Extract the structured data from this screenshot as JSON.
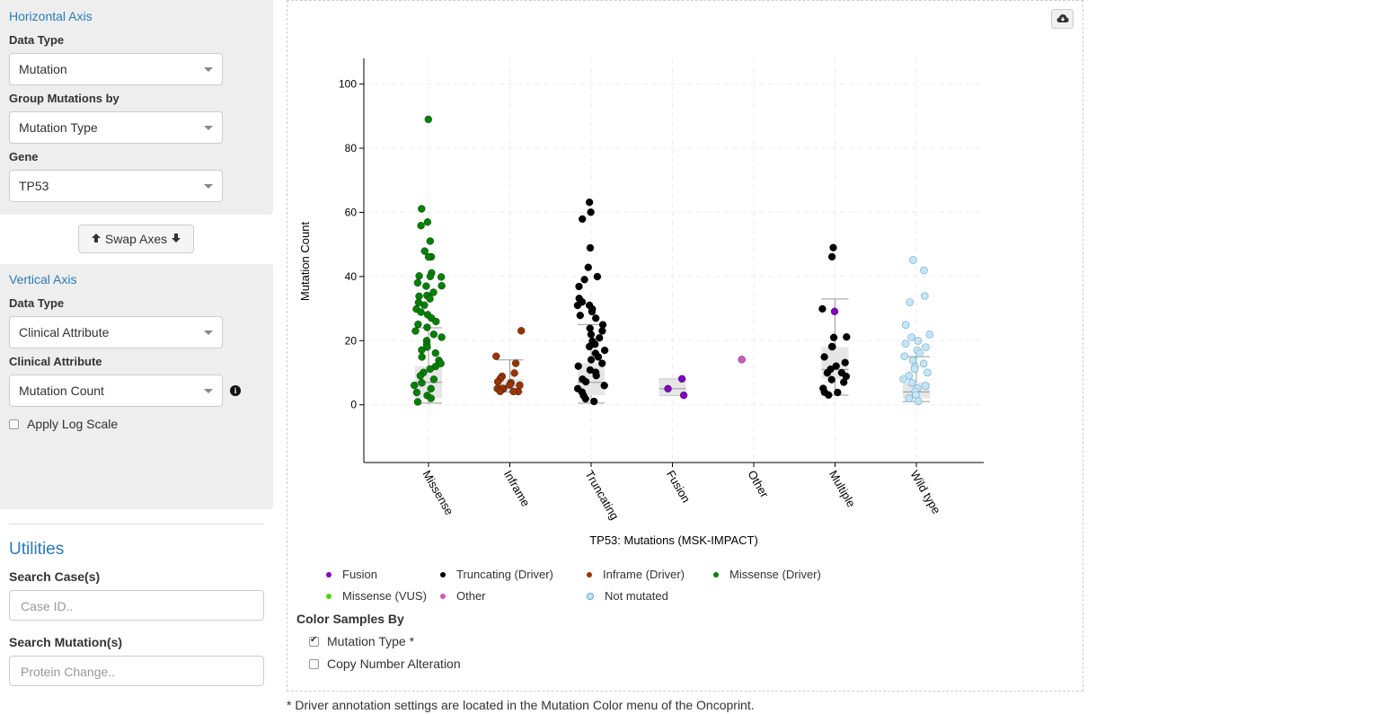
{
  "horizontal_axis": {
    "title": "Horizontal Axis",
    "data_type_label": "Data Type",
    "data_type_value": "Mutation",
    "group_label": "Group Mutations by",
    "group_value": "Mutation Type",
    "gene_label": "Gene",
    "gene_value": "TP53"
  },
  "swap_button": "Swap Axes",
  "vertical_axis": {
    "title": "Vertical Axis",
    "data_type_label": "Data Type",
    "data_type_value": "Clinical Attribute",
    "clinical_label": "Clinical Attribute",
    "clinical_value": "Mutation Count",
    "log_scale_label": "Apply Log Scale",
    "log_scale_checked": false
  },
  "utilities": {
    "title": "Utilities",
    "search_cases_label": "Search Case(s)",
    "search_cases_placeholder": "Case ID..",
    "search_mutations_label": "Search Mutation(s)",
    "search_mutations_placeholder": "Protein Change.."
  },
  "legend": [
    {
      "label": "Fusion",
      "color": "#8000c0"
    },
    {
      "label": "Truncating (Driver)",
      "color": "#000000"
    },
    {
      "label": "Inframe (Driver)",
      "color": "#993404"
    },
    {
      "label": "Missense (Driver)",
      "color": "#008000"
    },
    {
      "label": "Missense (VUS)",
      "color": "#53d400"
    },
    {
      "label": "Other",
      "color": "#cf58bc"
    },
    {
      "label": "Not mutated",
      "color": "#c4e5f5"
    }
  ],
  "color_samples": {
    "title": "Color Samples By",
    "options": [
      {
        "label": "Mutation Type *",
        "checked": true
      },
      {
        "label": "Copy Number Alteration",
        "checked": false
      }
    ]
  },
  "footnote": "* Driver annotation settings are located in the Mutation Color menu of the Oncoprint.",
  "chart_data": {
    "type": "scatter",
    "subtype": "box-jitter",
    "xlabel": "TP53: Mutations (MSK-IMPACT)",
    "ylabel": "Mutation Count",
    "ylim": [
      -18,
      108
    ],
    "yticks": [
      0,
      20,
      40,
      60,
      80,
      100
    ],
    "grid": true,
    "categories": [
      "Missense",
      "Inframe",
      "Truncating",
      "Fusion",
      "Other",
      "Multiple",
      "Wild type"
    ],
    "boxes": [
      {
        "category": "Missense",
        "whisker_low": 0.5,
        "q1": 2,
        "median": 7,
        "q3": 12,
        "whisker_high": 24
      },
      {
        "category": "Inframe",
        "whisker_low": 4,
        "q1": 4.5,
        "median": 6,
        "q3": 8,
        "whisker_high": 14
      },
      {
        "category": "Truncating",
        "whisker_low": 0.5,
        "q1": 3,
        "median": 7,
        "q3": 13,
        "whisker_high": 25
      },
      {
        "category": "Fusion",
        "whisker_low": 3,
        "q1": 3,
        "median": 5,
        "q3": 8,
        "whisker_high": 8
      },
      {
        "category": "Multiple",
        "whisker_low": 3,
        "q1": 8,
        "median": 11,
        "q3": 18,
        "whisker_high": 33
      },
      {
        "category": "Wild type",
        "whisker_low": 1,
        "q1": 2,
        "median": 4,
        "q3": 7,
        "whisker_high": 15
      }
    ],
    "series": [
      {
        "name": "Missense (Driver)",
        "category": "Missense",
        "color": "#008000",
        "values": [
          89,
          61,
          57,
          56,
          51,
          48,
          46,
          46,
          41,
          40,
          40,
          40,
          38,
          37,
          37,
          35,
          34,
          34,
          33,
          32,
          31,
          30,
          29,
          28,
          27,
          26,
          25,
          24,
          23,
          22,
          21,
          20,
          19,
          18,
          17,
          16,
          15,
          14,
          13,
          12,
          11,
          10,
          9,
          8,
          7,
          6,
          5,
          4,
          3,
          2,
          1
        ]
      },
      {
        "name": "Inframe (Driver)",
        "category": "Inframe",
        "color": "#993404",
        "values": [
          23,
          15,
          13,
          10,
          9,
          8,
          7,
          7,
          6,
          6,
          5,
          5,
          5,
          4,
          4,
          4
        ]
      },
      {
        "name": "Truncating (Driver)",
        "category": "Truncating",
        "color": "#000000",
        "values": [
          63,
          60,
          58,
          49,
          43,
          40,
          39,
          37,
          33,
          32,
          31,
          31,
          30,
          29,
          28,
          27,
          25,
          24,
          23,
          22,
          21,
          20,
          19,
          18,
          17,
          16,
          15,
          14,
          13,
          12,
          11,
          10,
          9,
          8,
          7,
          6,
          5,
          4,
          3,
          2,
          1
        ]
      },
      {
        "name": "Fusion",
        "category": "Fusion",
        "color": "#8000c0",
        "values": [
          8,
          5,
          3
        ]
      },
      {
        "name": "Other",
        "category": "Other",
        "color": "#cf58bc",
        "values": [
          14
        ]
      },
      {
        "name": "Fusion",
        "category": "Multiple",
        "color": "#8000c0",
        "values": [
          29
        ]
      },
      {
        "name": "Truncating (Driver)",
        "category": "Multiple",
        "color": "#000000",
        "values": [
          49,
          46,
          30,
          21,
          21,
          18,
          18,
          15,
          13,
          12,
          11,
          10,
          10,
          9,
          8,
          7,
          5,
          4,
          4,
          3
        ]
      },
      {
        "name": "Not mutated",
        "category": "Wild type",
        "color": "#c4e5f5",
        "values": [
          45,
          42,
          34,
          32,
          25,
          22,
          21,
          20,
          19,
          18,
          17,
          16,
          15,
          14,
          13,
          12,
          11,
          10,
          9,
          8,
          7,
          6,
          5,
          4,
          3,
          2,
          1
        ]
      }
    ]
  }
}
